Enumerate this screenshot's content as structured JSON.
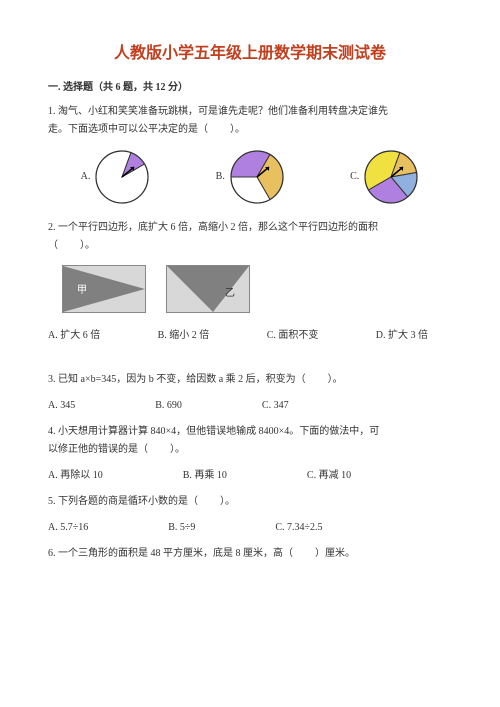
{
  "title": "人教版小学五年级上册数学期末测试卷",
  "section1": {
    "header": "一. 选择题（共 6 题，共 12 分）",
    "q1": {
      "text1": "1. 淘气、小红和笑笑准备玩跳棋，可是谁先走呢？他们准备利用转盘决定谁先",
      "text2": "走。下面选项中可以公平决定的是（",
      "text3": "）。",
      "labelA": "A.",
      "labelB": "B.",
      "labelC": "C.",
      "spinnerA": {
        "stroke": "#333333",
        "radius": 26,
        "sectors": [
          {
            "start": 20,
            "end": 60,
            "fill": "#b080e0"
          },
          {
            "start": 60,
            "end": 380,
            "fill": "#ffffff"
          }
        ]
      },
      "spinnerB": {
        "stroke": "#333333",
        "radius": 26,
        "sectors": [
          {
            "start": -90,
            "end": 30,
            "fill": "#b080e0"
          },
          {
            "start": 30,
            "end": 150,
            "fill": "#e8c060"
          },
          {
            "start": 150,
            "end": 270,
            "fill": "#ffffff"
          }
        ]
      },
      "spinnerC": {
        "stroke": "#333333",
        "radius": 26,
        "sectors": [
          {
            "start": -120,
            "end": 20,
            "fill": "#f0e040"
          },
          {
            "start": 20,
            "end": 80,
            "fill": "#e8c060"
          },
          {
            "start": 80,
            "end": 140,
            "fill": "#90b0e0"
          },
          {
            "start": 140,
            "end": 240,
            "fill": "#b080e0"
          }
        ]
      }
    },
    "q2": {
      "text1": "2. 一个平行四边形，底扩大 6 倍，高缩小 2 倍，那么这个平行四边形的面积",
      "text2": "（",
      "text3": "）。",
      "triangle1_label": "甲",
      "triangle2_label": "乙",
      "options": {
        "a": "A. 扩大 6 倍",
        "b": "B. 缩小 2 倍",
        "c": "C. 面积不变",
        "d": "D. 扩大 3 倍"
      }
    },
    "q3": {
      "text1": "3. 已知 a×b=345，因为 b 不变，给因数 a 乘 2 后，积变为（",
      "text2": "）。",
      "options": {
        "a": "A. 345",
        "b": "B. 690",
        "c": "C. 347"
      }
    },
    "q4": {
      "text1": "4. 小天想用计算器计算 840×4，但他错误地输成 8400×4。下面的做法中，可",
      "text2": "以修正他的错误的是（",
      "text3": "）。",
      "options": {
        "a": "A. 再除以 10",
        "b": "B. 再乘 10",
        "c": "C. 再减 10"
      }
    },
    "q5": {
      "text1": "5. 下列各题的商是循环小数的是（",
      "text2": "）。",
      "options": {
        "a": "A. 5.7÷16",
        "b": "B. 5÷9",
        "c": "C. 7.34÷2.5"
      }
    },
    "q6": {
      "text1": "6. 一个三角形的面积是 48 平方厘米，底是 8 厘米，高（",
      "text2": "）厘米。"
    }
  }
}
